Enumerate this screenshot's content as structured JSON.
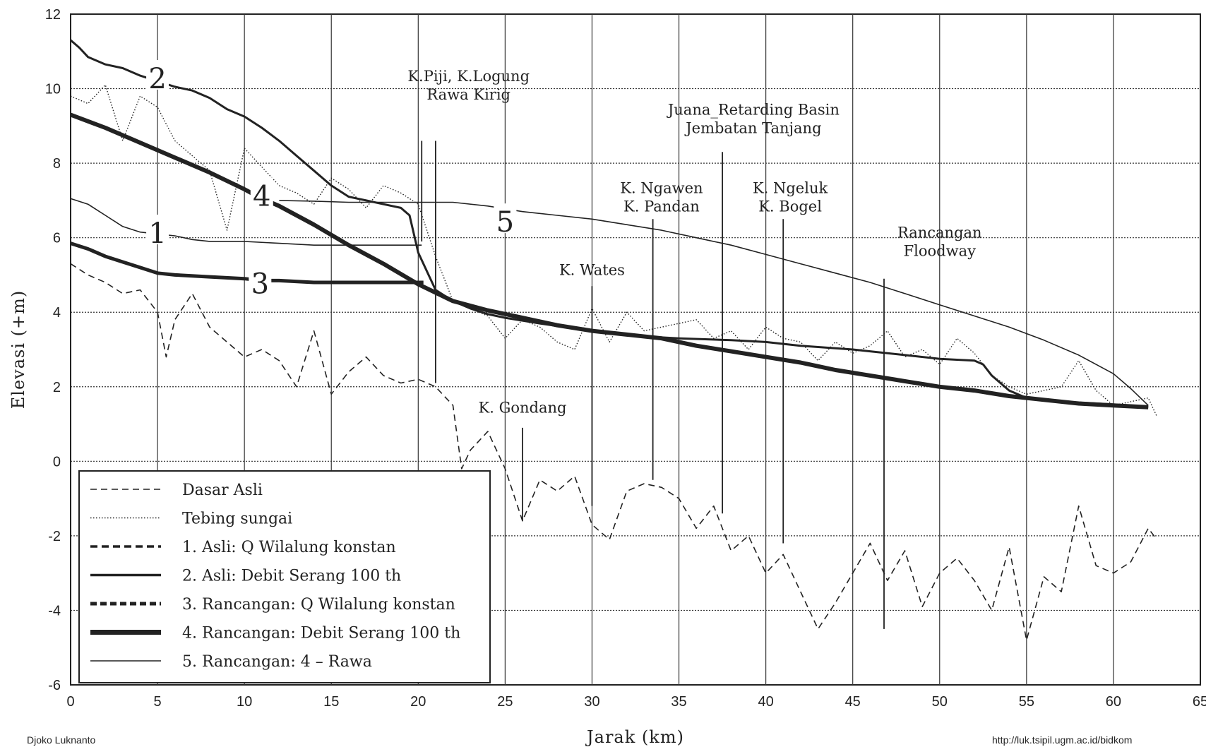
{
  "chart_data": {
    "type": "line",
    "xlabel": "Jarak (km)",
    "ylabel": "Elevasi (+m)",
    "xlim": [
      0,
      65
    ],
    "ylim": [
      -6,
      12
    ],
    "xticks": [
      "0",
      "5",
      "10",
      "15",
      "20",
      "25",
      "30",
      "35",
      "40",
      "45",
      "50",
      "55",
      "60",
      "65"
    ],
    "yticks": [
      "12",
      "10",
      "8",
      "6",
      "4",
      "2",
      "0",
      "-2",
      "-4",
      "-6"
    ],
    "grid": true,
    "legend_position": "bottom-left",
    "series": [
      {
        "name": "Dasar Asli",
        "style": "dashed",
        "x": [
          0,
          1,
          2,
          3,
          4,
          5,
          5.5,
          6,
          7,
          8,
          9,
          10,
          11,
          12,
          13,
          14,
          15,
          16,
          17,
          18,
          19,
          20,
          21,
          22,
          22.5,
          23,
          24,
          25,
          26,
          27,
          28,
          29,
          30,
          31,
          32,
          33,
          34,
          35,
          36,
          37,
          38,
          39,
          40,
          41,
          42,
          43,
          44,
          45,
          46,
          47,
          48,
          49,
          50,
          51,
          52,
          53,
          54,
          55,
          56,
          57,
          58,
          59,
          60,
          61,
          62,
          62.5
        ],
        "y": [
          5.3,
          5.0,
          4.8,
          4.5,
          4.6,
          4.0,
          2.8,
          3.8,
          4.5,
          3.6,
          3.2,
          2.8,
          3.0,
          2.7,
          2.0,
          3.5,
          1.8,
          2.4,
          2.8,
          2.3,
          2.1,
          2.2,
          2.0,
          1.5,
          -0.2,
          0.3,
          0.8,
          -0.2,
          -1.6,
          -0.5,
          -0.8,
          -0.4,
          -1.7,
          -2.1,
          -0.8,
          -0.6,
          -0.7,
          -1.0,
          -1.8,
          -1.2,
          -2.4,
          -2.0,
          -3.0,
          -2.5,
          -3.5,
          -4.5,
          -3.8,
          -3.0,
          -2.2,
          -3.2,
          -2.4,
          -3.9,
          -3.0,
          -2.6,
          -3.2,
          -4.0,
          -2.3,
          -4.8,
          -3.1,
          -3.5,
          -1.2,
          -2.8,
          -3.0,
          -2.7,
          -1.8,
          -2.1
        ]
      },
      {
        "name": "Tebing sungai",
        "style": "dotted",
        "x": [
          0,
          1,
          2,
          3,
          4,
          5,
          6,
          7,
          8,
          9,
          10,
          11,
          12,
          13,
          14,
          15,
          16,
          17,
          18,
          19,
          20,
          21,
          22,
          23,
          24,
          25,
          26,
          27,
          28,
          29,
          30,
          31,
          32,
          33,
          34,
          35,
          36,
          37,
          38,
          39,
          40,
          41,
          42,
          43,
          44,
          45,
          46,
          47,
          48,
          49,
          50,
          51,
          52,
          53,
          54,
          55,
          56,
          57,
          58,
          59,
          60,
          61,
          62,
          62.5
        ],
        "y": [
          9.8,
          9.6,
          10.1,
          8.6,
          9.8,
          9.5,
          8.6,
          8.2,
          7.8,
          6.2,
          8.4,
          7.9,
          7.4,
          7.2,
          6.9,
          7.6,
          7.3,
          6.8,
          7.4,
          7.2,
          6.9,
          5.5,
          4.3,
          4.1,
          3.9,
          3.3,
          3.8,
          3.6,
          3.2,
          3.0,
          4.1,
          3.2,
          4.0,
          3.5,
          3.6,
          3.7,
          3.8,
          3.3,
          3.5,
          3.0,
          3.6,
          3.3,
          3.2,
          2.7,
          3.2,
          2.9,
          3.1,
          3.5,
          2.8,
          3.0,
          2.6,
          3.3,
          2.9,
          2.3,
          2.0,
          1.8,
          1.9,
          2.0,
          2.7,
          1.9,
          1.5,
          1.6,
          1.7,
          1.2
        ]
      },
      {
        "name": "1. Asli: Q Wilalung konstan",
        "style": "solid-thin",
        "x": [
          0,
          1,
          2,
          3,
          4,
          5,
          6,
          7,
          8,
          10,
          12,
          14,
          16,
          18,
          20,
          20.2
        ],
        "y": [
          7.05,
          6.9,
          6.6,
          6.3,
          6.15,
          6.1,
          6.05,
          5.95,
          5.9,
          5.9,
          5.85,
          5.8,
          5.8,
          5.8,
          5.8,
          5.8
        ]
      },
      {
        "name": "2. Asli: Debit Serang 100 th",
        "style": "solid",
        "x": [
          0,
          0.5,
          1,
          2,
          3,
          4,
          5,
          6,
          7,
          8,
          9,
          10,
          11,
          12,
          13,
          14,
          15,
          16,
          17,
          18,
          19,
          19.5,
          20,
          20.5,
          21,
          22,
          23,
          24,
          25,
          27,
          30,
          33,
          35,
          38,
          40,
          42,
          45,
          48,
          50,
          52,
          52.5,
          53,
          54,
          55,
          57,
          59,
          61,
          62
        ],
        "y": [
          11.3,
          11.1,
          10.85,
          10.65,
          10.55,
          10.35,
          10.2,
          10.05,
          9.95,
          9.75,
          9.45,
          9.25,
          8.95,
          8.6,
          8.2,
          7.8,
          7.4,
          7.1,
          7.0,
          6.9,
          6.8,
          6.6,
          5.6,
          5.1,
          4.6,
          4.3,
          4.1,
          3.95,
          3.85,
          3.7,
          3.5,
          3.35,
          3.3,
          3.25,
          3.2,
          3.1,
          3.0,
          2.85,
          2.75,
          2.7,
          2.6,
          2.3,
          1.9,
          1.7,
          1.6,
          1.55,
          1.5,
          1.45
        ]
      },
      {
        "name": "3. Rancangan: Q Wilalung konstan",
        "style": "solid-thick",
        "x": [
          0,
          1,
          2,
          3,
          4,
          5,
          6,
          8,
          10,
          11,
          12,
          14,
          16,
          18,
          20,
          20.3
        ],
        "y": [
          5.85,
          5.7,
          5.5,
          5.35,
          5.2,
          5.05,
          5.0,
          4.95,
          4.9,
          4.85,
          4.85,
          4.8,
          4.8,
          4.8,
          4.8,
          4.8
        ]
      },
      {
        "name": "4. Rancangan: Debit Serang 100 th",
        "style": "solid-thicker",
        "x": [
          0,
          2,
          4,
          6,
          8,
          10,
          11,
          12,
          14,
          16,
          18,
          20,
          22,
          24,
          26,
          28,
          30,
          32,
          34,
          36,
          38,
          40,
          42,
          44,
          46,
          48,
          50,
          52,
          54,
          56,
          58,
          60,
          62
        ],
        "y": [
          9.3,
          8.95,
          8.55,
          8.15,
          7.75,
          7.3,
          7.05,
          6.85,
          6.35,
          5.8,
          5.3,
          4.75,
          4.3,
          4.05,
          3.85,
          3.65,
          3.5,
          3.4,
          3.3,
          3.1,
          2.95,
          2.8,
          2.65,
          2.45,
          2.3,
          2.15,
          2.0,
          1.9,
          1.75,
          1.65,
          1.55,
          1.5,
          1.45
        ]
      },
      {
        "name": "5. Rancangan: 4 – Rawa",
        "style": "solid-thin",
        "x": [
          12,
          14,
          16,
          18,
          20,
          22,
          24,
          26,
          28,
          30,
          32,
          34,
          36,
          38,
          40,
          42,
          44,
          46,
          48,
          50,
          52,
          54,
          56,
          58,
          60,
          61,
          62
        ],
        "y": [
          7.0,
          6.98,
          6.95,
          6.95,
          6.95,
          6.95,
          6.85,
          6.7,
          6.6,
          6.5,
          6.35,
          6.2,
          6.0,
          5.8,
          5.55,
          5.3,
          5.05,
          4.8,
          4.5,
          4.2,
          3.9,
          3.6,
          3.25,
          2.85,
          2.35,
          1.95,
          1.5
        ]
      }
    ],
    "curve_labels": [
      "1",
      "2",
      "3",
      "4",
      "5"
    ],
    "annotations": [
      {
        "lines": [
          "K.Piji, K.Logung",
          "Rawa Kirig"
        ],
        "x": [
          20.2,
          21.0
        ]
      },
      {
        "lines": [
          "Juana_Retarding Basin",
          "Jembatan Tanjang"
        ],
        "x": [
          37.5
        ]
      },
      {
        "lines": [
          "K. Ngawen",
          "K. Pandan"
        ],
        "x": [
          33.5
        ]
      },
      {
        "lines": [
          "K. Ngeluk",
          "K. Bogel"
        ],
        "x": [
          41.0
        ]
      },
      {
        "lines": [
          "Rancangan",
          "Floodway"
        ],
        "x": [
          46.8
        ]
      },
      {
        "lines": [
          "K.  Wates"
        ],
        "x": [
          30.0
        ]
      },
      {
        "lines": [
          "K. Gondang"
        ],
        "x": [
          26.0
        ]
      }
    ]
  },
  "footer": {
    "left": "Djoko Luknanto",
    "right": "http://luk.tsipil.ugm.ac.id/bidkom"
  }
}
